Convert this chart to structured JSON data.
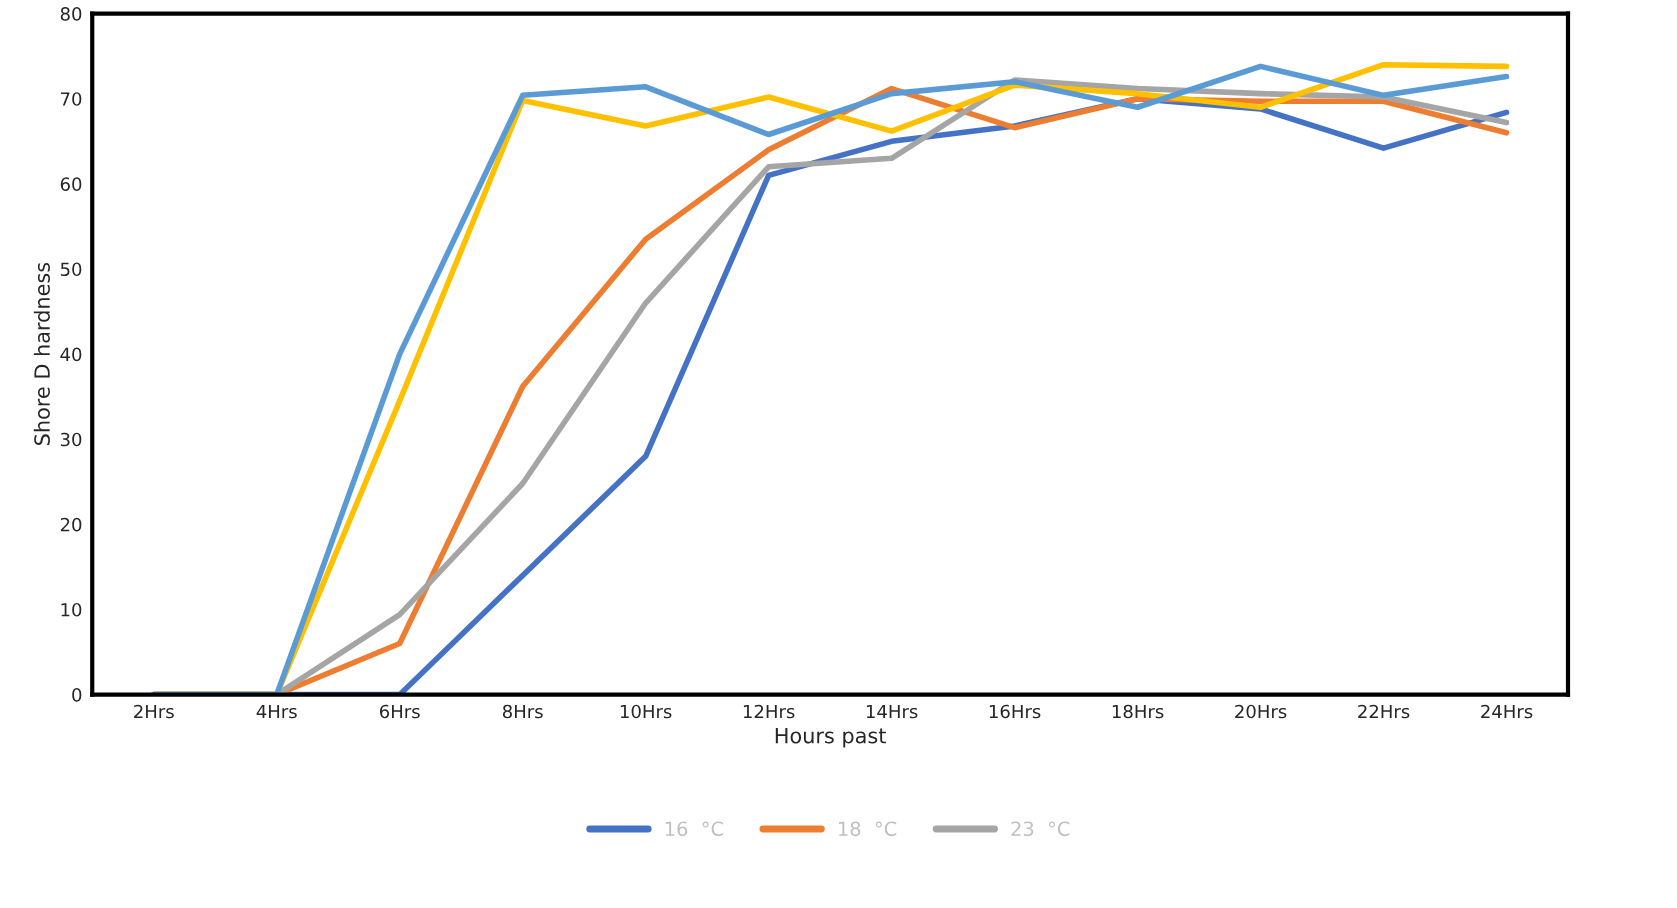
{
  "chart_data": {
    "type": "line",
    "xlabel": "Hours past",
    "ylabel": "Shore D hardness",
    "categories": [
      "2Hrs",
      "4Hrs",
      "6Hrs",
      "8Hrs",
      "10Hrs",
      "12Hrs",
      "14Hrs",
      "16Hrs",
      "18Hrs",
      "20Hrs",
      "22Hrs",
      "24Hrs"
    ],
    "series": [
      {
        "name": "16  °C",
        "color": "#4472c4",
        "values": [
          0,
          0,
          0,
          14,
          28,
          61,
          65,
          66.8,
          70,
          68.8,
          64.2,
          68.4
        ]
      },
      {
        "name": "18  °C",
        "color": "#ed7d31",
        "values": [
          0,
          0,
          6,
          36.2,
          53.5,
          64,
          71.2,
          66.6,
          70,
          69.7,
          69.7,
          66
        ]
      },
      {
        "name": "23  °C",
        "color": "#a5a5a5",
        "values": [
          0,
          0,
          9.4,
          24.8,
          46,
          62,
          63,
          72.2,
          71.2,
          70.6,
          70.2,
          67.2
        ]
      },
      {
        "color": "#ffc000",
        "values": [
          0,
          0,
          34.5,
          69.8,
          66.8,
          70.2,
          66.2,
          71.6,
          70.6,
          69,
          74,
          73.8
        ]
      },
      {
        "color": "#5b9bd5",
        "values": [
          0,
          0,
          40,
          70.4,
          71.4,
          65.8,
          70.6,
          72,
          69,
          73.8,
          70.4,
          72.6
        ]
      }
    ],
    "ylim": [
      0,
      80
    ],
    "yticks": [
      0,
      10,
      20,
      30,
      40,
      50,
      60,
      70,
      80
    ],
    "grid": false,
    "legend": "bottom",
    "marker": "none",
    "line_style": "solid"
  }
}
